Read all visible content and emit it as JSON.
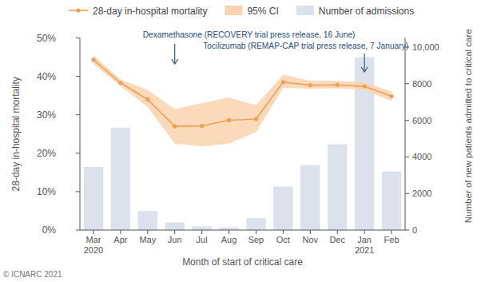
{
  "chart_data": {
    "type": "bar_line",
    "x_label": "Month of start of critical care",
    "y_label": "28-day in-hospital mortality",
    "y2_label": "Number of new patients admitted to critical care",
    "footer": "© ICNARC 2021",
    "categories": [
      "Mar 2020",
      "Apr",
      "May",
      "Jun",
      "Jul",
      "Aug",
      "Sep",
      "Oct",
      "Nov",
      "Dec",
      "Jan 2021",
      "Feb"
    ],
    "ylim": [
      0,
      50
    ],
    "yticks": [
      {
        "value": 0,
        "label": "0%"
      },
      {
        "value": 10,
        "label": "10%"
      },
      {
        "value": 20,
        "label": "20%"
      },
      {
        "value": 30,
        "label": "30%"
      },
      {
        "value": 40,
        "label": "40%"
      },
      {
        "value": 50,
        "label": "50%"
      }
    ],
    "y2lim": [
      0,
      10500
    ],
    "y2ticks": [
      0,
      2000,
      4000,
      6000,
      8000,
      {
        "value": 10000,
        "label": "10,000"
      }
    ],
    "legend": "top",
    "series": [
      {
        "name": "28-day in-hospital mortality",
        "type": "line",
        "color": "#f0a052",
        "marker": "circle",
        "values": [
          44.3,
          38.3,
          34.0,
          27.0,
          27.1,
          28.6,
          28.9,
          38.5,
          37.7,
          37.8,
          37.4,
          34.8
        ]
      },
      {
        "name": "95% CI",
        "type": "area",
        "color": "#f9d3ae",
        "lower": [
          43.2,
          37.5,
          32.0,
          22.5,
          21.8,
          22.5,
          25.5,
          37.0,
          36.8,
          36.9,
          36.5,
          33.5
        ],
        "upper": [
          45.5,
          39.2,
          36.5,
          31.5,
          33.0,
          34.5,
          32.5,
          40.5,
          38.8,
          38.8,
          38.5,
          36.0
        ]
      },
      {
        "name": "Number of admissions",
        "type": "bar",
        "axis": "y2",
        "color": "#dde1ec",
        "values": [
          3450,
          5600,
          1050,
          420,
          200,
          150,
          650,
          2380,
          3550,
          4680,
          9450,
          3200
        ]
      }
    ],
    "annotations": [
      {
        "text": "Dexamethasone (RECOVERY trial press release, 16 June)",
        "x": "Jun"
      },
      {
        "text": "Tocilizumab (REMAP-CAP trial press release, 7 January)",
        "x": "Jan 2021"
      }
    ]
  }
}
